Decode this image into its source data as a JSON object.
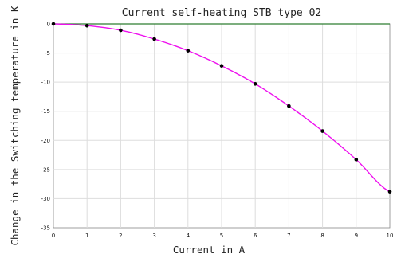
{
  "chart_data": {
    "type": "line",
    "title": "Current self-heating STB type 02",
    "xlabel": "Current in A",
    "ylabel": "Change in the Switching temperature in K",
    "xlim": [
      0,
      10
    ],
    "ylim": [
      -35,
      0
    ],
    "x_ticks": [
      "0",
      "1",
      "2",
      "3",
      "4",
      "5",
      "6",
      "7",
      "8",
      "9",
      "10"
    ],
    "y_ticks": [
      "0",
      "-5",
      "-10",
      "-15",
      "-20",
      "-25",
      "-30",
      "-35"
    ],
    "grid": true,
    "series": [
      {
        "color": "#ee11ee",
        "marker_color": "#000000",
        "x": [
          0,
          1,
          2,
          3,
          4,
          5,
          6,
          7,
          8,
          9,
          10
        ],
        "values": [
          0,
          -0.3,
          -1.1,
          -2.6,
          -4.6,
          -7.2,
          -10.3,
          -14.1,
          -18.4,
          -23.3,
          -28.8
        ]
      }
    ],
    "baseline_color": "#2e7d32"
  }
}
